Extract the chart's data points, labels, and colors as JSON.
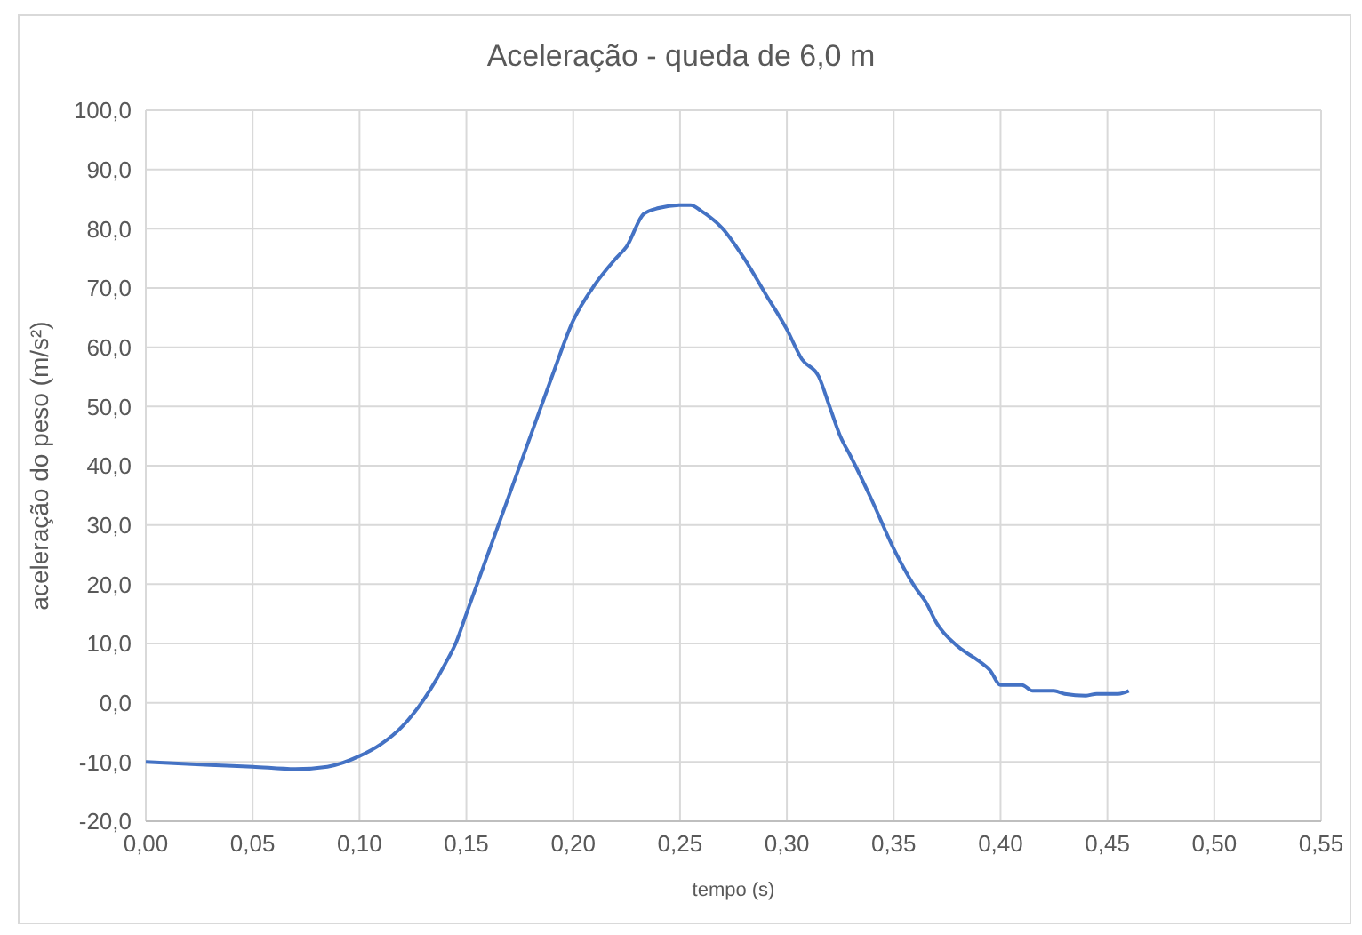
{
  "chart_data": {
    "type": "line",
    "title": "Aceleração - queda de 6,0 m",
    "xlabel": "tempo (s)",
    "ylabel": "aceleração do peso (m/s²)",
    "x": [
      0,
      0.03,
      0.05,
      0.07,
      0.085,
      0.1,
      0.11,
      0.12,
      0.13,
      0.14,
      0.145,
      0.15,
      0.16,
      0.17,
      0.18,
      0.19,
      0.2,
      0.21,
      0.22,
      0.225,
      0.233,
      0.24,
      0.25,
      0.255,
      0.26,
      0.27,
      0.28,
      0.29,
      0.3,
      0.307,
      0.315,
      0.32,
      0.325,
      0.33,
      0.34,
      0.35,
      0.36,
      0.365,
      0.37,
      0.38,
      0.39,
      0.395,
      0.4,
      0.41,
      0.415,
      0.425,
      0.43,
      0.44,
      0.445,
      0.45,
      0.455,
      0.46
    ],
    "series": [
      {
        "color": "#4472c4",
        "values": [
          -10,
          -10.5,
          -10.8,
          -11.2,
          -10.8,
          -9,
          -7,
          -4,
          0.5,
          6.5,
          10,
          15,
          25,
          35,
          45,
          55,
          64.5,
          70.5,
          75,
          77,
          82.5,
          83.5,
          84,
          84,
          83,
          80,
          75,
          69,
          63,
          58,
          55,
          50,
          45,
          41.5,
          34,
          26,
          19.5,
          17,
          13.5,
          9.5,
          7,
          5.5,
          3,
          3,
          2,
          2,
          1.5,
          1.2,
          1.5,
          1.5,
          1.5,
          2
        ]
      }
    ],
    "xlim": [
      0,
      0.55
    ],
    "xticks": [
      {
        "value": 0,
        "label": "0,00"
      },
      {
        "value": 0.05,
        "label": "0,05"
      },
      {
        "value": 0.1,
        "label": "0,10"
      },
      {
        "value": 0.15,
        "label": "0,15"
      },
      {
        "value": 0.2,
        "label": "0,20"
      },
      {
        "value": 0.25,
        "label": "0,25"
      },
      {
        "value": 0.3,
        "label": "0,30"
      },
      {
        "value": 0.35,
        "label": "0,35"
      },
      {
        "value": 0.4,
        "label": "0,40"
      },
      {
        "value": 0.45,
        "label": "0,45"
      },
      {
        "value": 0.5,
        "label": "0,50"
      },
      {
        "value": 0.55,
        "label": "0,55"
      }
    ],
    "ylim": [
      -20,
      100
    ],
    "yticks": [
      {
        "value": -20,
        "label": "-20,0"
      },
      {
        "value": -10,
        "label": "-10,0"
      },
      {
        "value": 0,
        "label": "0,0"
      },
      {
        "value": 10,
        "label": "10,0"
      },
      {
        "value": 20,
        "label": "20,0"
      },
      {
        "value": 30,
        "label": "30,0"
      },
      {
        "value": 40,
        "label": "40,0"
      },
      {
        "value": 50,
        "label": "50,0"
      },
      {
        "value": 60,
        "label": "60,0"
      },
      {
        "value": 70,
        "label": "70,0"
      },
      {
        "value": 80,
        "label": "80,0"
      },
      {
        "value": 90,
        "label": "90,0"
      },
      {
        "value": 100,
        "label": "100,0"
      }
    ],
    "grid": true,
    "marker": "none",
    "line_style": "solid"
  }
}
